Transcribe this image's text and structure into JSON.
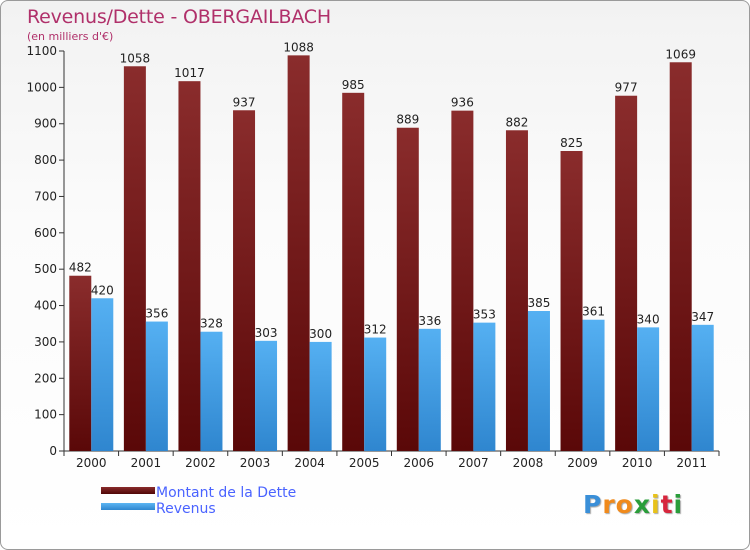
{
  "header": {
    "title": "Revenus/Dette - OBERGAILBACH",
    "subtitle": "(en milliers d'€)"
  },
  "logo": {
    "letters": [
      "P",
      "r",
      "o",
      "x",
      "i",
      "t",
      "i"
    ],
    "colors": [
      "#3a8fd8",
      "#f08a1c",
      "#f08a1c",
      "#2a9d3a",
      "#e8c21a",
      "#d7263d",
      "#2a9d3a"
    ]
  },
  "legend": [
    {
      "label": "Montant de la Dette",
      "color": "#6e1818"
    },
    {
      "label": "Revenus",
      "color": "#3f9be6"
    }
  ],
  "chart_data": {
    "type": "bar",
    "categories": [
      "2000",
      "2001",
      "2002",
      "2003",
      "2004",
      "2005",
      "2006",
      "2007",
      "2008",
      "2009",
      "2010",
      "2011"
    ],
    "series": [
      {
        "name": "Montant de la Dette",
        "values": [
          482,
          1058,
          1017,
          937,
          1088,
          985,
          889,
          936,
          882,
          825,
          977,
          1069
        ],
        "color": "#7a1e1e"
      },
      {
        "name": "Revenus",
        "values": [
          420,
          356,
          328,
          303,
          300,
          312,
          336,
          353,
          385,
          361,
          340,
          347
        ],
        "color": "#4aa6ee"
      }
    ],
    "ylim": [
      0,
      1100
    ],
    "yticks": [
      0,
      100,
      200,
      300,
      400,
      500,
      600,
      700,
      800,
      900,
      1000,
      1100
    ],
    "grid": false,
    "legend_position": "bottom-left"
  }
}
